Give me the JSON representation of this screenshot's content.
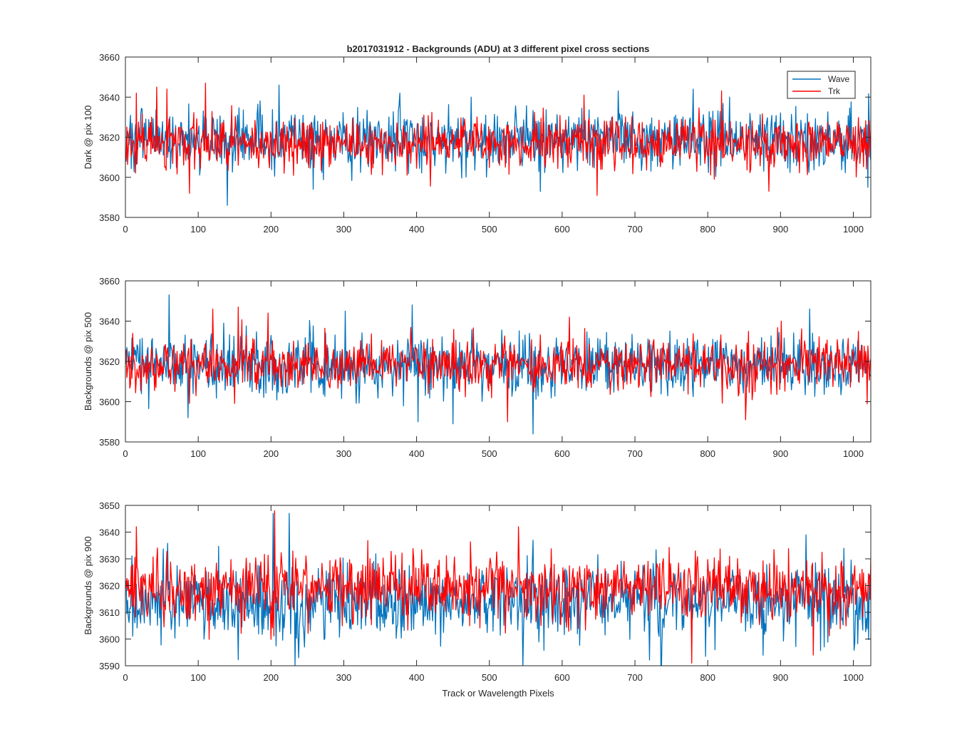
{
  "figure": {
    "title": "b2017031912 - Backgrounds (ADU) at 3 different pixel cross sections",
    "xlabel": "Track or Wavelength Pixels"
  },
  "legend": {
    "wave_label": "Wave",
    "trk_label": "Trk",
    "placement": "top-right of top panel"
  },
  "colors": {
    "wave": "#0072BD",
    "trk": "#FF0000",
    "axes": "#262626",
    "background": "#ffffff"
  },
  "chart_data": [
    {
      "type": "line",
      "title": "b2017031912 - Backgrounds (ADU) at 3 different pixel cross sections",
      "xlabel": "",
      "ylabel": "Dark @ pix 100",
      "xlim": [
        0,
        1024
      ],
      "ylim": [
        3580,
        3660
      ],
      "xticks": [
        0,
        100,
        200,
        300,
        400,
        500,
        600,
        700,
        800,
        900,
        1000
      ],
      "yticks": [
        3580,
        3600,
        3620,
        3640,
        3660
      ],
      "x": "pixel index 1..1024",
      "series": [
        {
          "name": "Wave",
          "color": "#0072BD",
          "mean": 3619,
          "std": 7.5,
          "seed": 101,
          "spikes": [
            [
              140,
              3586
            ],
            [
              211,
              3646
            ],
            [
              258,
              3594
            ],
            [
              377,
              3642
            ],
            [
              570,
              3593
            ],
            [
              780,
              3644
            ],
            [
              1020,
              3595
            ],
            [
              830,
              3640
            ]
          ]
        },
        {
          "name": "Trk",
          "color": "#FF0000",
          "mean": 3617,
          "std": 6.5,
          "seed": 202,
          "spikes": [
            [
              15,
              3642
            ],
            [
              43,
              3645
            ],
            [
              57,
              3644
            ],
            [
              88,
              3592
            ],
            [
              110,
              3647
            ],
            [
              648,
              3591
            ],
            [
              630,
              3641
            ]
          ]
        }
      ]
    },
    {
      "type": "line",
      "title": "",
      "xlabel": "",
      "ylabel": "Backgrounds @ pix 500",
      "xlim": [
        0,
        1024
      ],
      "ylim": [
        3580,
        3660
      ],
      "xticks": [
        0,
        100,
        200,
        300,
        400,
        500,
        600,
        700,
        800,
        900,
        1000
      ],
      "yticks": [
        3580,
        3600,
        3620,
        3640,
        3660
      ],
      "x": "pixel index 1..1024",
      "series": [
        {
          "name": "Wave",
          "color": "#0072BD",
          "mean": 3618,
          "std": 7.5,
          "seed": 303,
          "spikes": [
            [
              60,
              3653
            ],
            [
              86,
              3592
            ],
            [
              302,
              3645
            ],
            [
              394,
              3648
            ],
            [
              402,
              3590
            ],
            [
              450,
              3589
            ],
            [
              560,
              3584
            ],
            [
              940,
              3646
            ]
          ]
        },
        {
          "name": "Trk",
          "color": "#FF0000",
          "mean": 3618,
          "std": 6.5,
          "seed": 404,
          "spikes": [
            [
              120,
              3646
            ],
            [
              155,
              3647
            ],
            [
              196,
              3644
            ],
            [
              525,
              3590
            ],
            [
              610,
              3642
            ],
            [
              852,
              3591
            ]
          ]
        }
      ]
    },
    {
      "type": "line",
      "title": "",
      "xlabel": "Track or Wavelength Pixels",
      "ylabel": "Backgrounds @ pix 900",
      "xlim": [
        0,
        1024
      ],
      "ylim": [
        3590,
        3650
      ],
      "xticks": [
        0,
        100,
        200,
        300,
        400,
        500,
        600,
        700,
        800,
        900,
        1000
      ],
      "yticks": [
        3590,
        3600,
        3610,
        3620,
        3630,
        3640,
        3650
      ],
      "x": "pixel index 1..1024",
      "series": [
        {
          "name": "Wave",
          "color": "#0072BD",
          "mean": 3614,
          "std": 7.0,
          "seed": 505,
          "spikes": [
            [
              203,
              3647
            ],
            [
              225,
              3647
            ],
            [
              233,
              3590
            ],
            [
              238,
              3593
            ],
            [
              560,
              3637
            ],
            [
              935,
              3639
            ]
          ]
        },
        {
          "name": "Trk",
          "color": "#FF0000",
          "mean": 3619,
          "std": 6.0,
          "seed": 606,
          "spikes": [
            [
              15,
              3642
            ],
            [
              205,
              3648
            ],
            [
              540,
              3642
            ],
            [
              945,
              3594
            ],
            [
              778,
              3591
            ]
          ]
        }
      ]
    }
  ]
}
